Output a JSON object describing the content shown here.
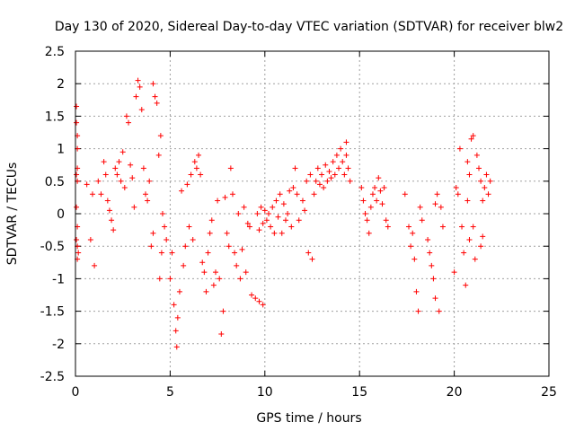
{
  "chart_data": {
    "type": "scatter",
    "title": "Day 130 of 2020, Sidereal Day-to-day VTEC variation (SDTVAR) for receiver blw2",
    "xlabel": "GPS time / hours",
    "ylabel": "SDTVAR / TECUs",
    "xlim": [
      0,
      25
    ],
    "ylim": [
      -2.5,
      2.5
    ],
    "xticks": [
      "0",
      "5",
      "10",
      "15",
      "20",
      "25"
    ],
    "yticks": [
      "2.5",
      "2",
      "1.5",
      "1",
      "0.5",
      "0",
      "-0.5",
      "-1",
      "-1.5",
      "-2",
      "-2.5"
    ],
    "grid": true,
    "marker": "+",
    "series_color": "#ff0000",
    "series": [
      {
        "name": "SDTVAR",
        "points": [
          [
            0.05,
            1.65
          ],
          [
            0.05,
            1.4
          ],
          [
            0.1,
            1.2
          ],
          [
            0.1,
            1.0
          ],
          [
            0.1,
            0.7
          ],
          [
            0.05,
            0.6
          ],
          [
            0.1,
            0.5
          ],
          [
            0.05,
            -0.4
          ],
          [
            0.1,
            -0.5
          ],
          [
            0.15,
            -0.6
          ],
          [
            0.1,
            -0.7
          ],
          [
            0.05,
            0.1
          ],
          [
            0.1,
            -0.2
          ],
          [
            0.6,
            0.45
          ],
          [
            0.8,
            -0.4
          ],
          [
            0.9,
            0.3
          ],
          [
            1.0,
            -0.8
          ],
          [
            1.2,
            0.5
          ],
          [
            1.35,
            0.3
          ],
          [
            1.5,
            0.8
          ],
          [
            1.6,
            0.6
          ],
          [
            1.7,
            0.2
          ],
          [
            1.8,
            0.05
          ],
          [
            1.9,
            -0.1
          ],
          [
            2.0,
            -0.25
          ],
          [
            2.1,
            0.7
          ],
          [
            2.2,
            0.6
          ],
          [
            2.3,
            0.8
          ],
          [
            2.4,
            0.5
          ],
          [
            2.5,
            0.95
          ],
          [
            2.6,
            0.4
          ],
          [
            2.7,
            1.5
          ],
          [
            2.8,
            1.4
          ],
          [
            2.9,
            0.75
          ],
          [
            3.0,
            0.55
          ],
          [
            3.1,
            0.1
          ],
          [
            3.2,
            1.8
          ],
          [
            3.3,
            2.05
          ],
          [
            3.4,
            1.95
          ],
          [
            3.5,
            1.6
          ],
          [
            3.6,
            0.7
          ],
          [
            3.7,
            0.3
          ],
          [
            3.8,
            0.2
          ],
          [
            3.9,
            0.5
          ],
          [
            4.0,
            -0.5
          ],
          [
            4.1,
            -0.3
          ],
          [
            4.1,
            2.0
          ],
          [
            4.2,
            1.8
          ],
          [
            4.3,
            1.7
          ],
          [
            4.4,
            0.9
          ],
          [
            4.45,
            -1.0
          ],
          [
            4.5,
            1.2
          ],
          [
            4.55,
            -0.6
          ],
          [
            4.6,
            0.0
          ],
          [
            4.7,
            -0.2
          ],
          [
            4.8,
            -0.4
          ],
          [
            5.0,
            -1.0
          ],
          [
            5.1,
            -0.6
          ],
          [
            5.2,
            -1.4
          ],
          [
            5.3,
            -1.8
          ],
          [
            5.35,
            -2.05
          ],
          [
            5.4,
            -1.6
          ],
          [
            5.5,
            -1.2
          ],
          [
            5.6,
            0.35
          ],
          [
            5.7,
            -0.8
          ],
          [
            5.8,
            -0.5
          ],
          [
            5.9,
            0.45
          ],
          [
            6.0,
            -0.2
          ],
          [
            6.1,
            0.6
          ],
          [
            6.2,
            -0.4
          ],
          [
            6.3,
            0.8
          ],
          [
            6.4,
            0.7
          ],
          [
            6.5,
            0.9
          ],
          [
            6.6,
            0.6
          ],
          [
            6.7,
            -0.75
          ],
          [
            6.8,
            -0.9
          ],
          [
            6.9,
            -1.2
          ],
          [
            7.0,
            -0.6
          ],
          [
            7.1,
            -0.3
          ],
          [
            7.2,
            -0.1
          ],
          [
            7.3,
            -1.1
          ],
          [
            7.4,
            -0.9
          ],
          [
            7.5,
            0.2
          ],
          [
            7.6,
            -1.0
          ],
          [
            7.7,
            -1.85
          ],
          [
            7.8,
            -1.5
          ],
          [
            7.9,
            0.25
          ],
          [
            8.0,
            -0.3
          ],
          [
            8.1,
            -0.5
          ],
          [
            8.2,
            0.7
          ],
          [
            8.3,
            0.3
          ],
          [
            8.4,
            -0.6
          ],
          [
            8.5,
            -0.8
          ],
          [
            8.6,
            0.0
          ],
          [
            8.7,
            -1.0
          ],
          [
            8.8,
            -0.55
          ],
          [
            8.9,
            0.1
          ],
          [
            9.0,
            -0.9
          ],
          [
            9.1,
            -0.15
          ],
          [
            9.2,
            -0.2
          ],
          [
            9.3,
            -1.25
          ],
          [
            9.5,
            -1.3
          ],
          [
            9.7,
            -1.35
          ],
          [
            9.9,
            -1.4
          ],
          [
            9.6,
            0.0
          ],
          [
            9.7,
            -0.25
          ],
          [
            9.8,
            0.1
          ],
          [
            9.9,
            -0.15
          ],
          [
            10.0,
            0.05
          ],
          [
            10.1,
            -0.1
          ],
          [
            10.2,
            0.0
          ],
          [
            10.3,
            -0.2
          ],
          [
            10.4,
            0.1
          ],
          [
            10.5,
            -0.3
          ],
          [
            10.6,
            0.2
          ],
          [
            10.7,
            -0.05
          ],
          [
            10.8,
            0.3
          ],
          [
            10.9,
            -0.3
          ],
          [
            11.0,
            0.15
          ],
          [
            11.1,
            -0.1
          ],
          [
            11.2,
            0.0
          ],
          [
            11.3,
            0.35
          ],
          [
            11.4,
            -0.2
          ],
          [
            11.5,
            0.4
          ],
          [
            11.6,
            0.7
          ],
          [
            11.7,
            0.3
          ],
          [
            11.8,
            -0.1
          ],
          [
            12.0,
            0.2
          ],
          [
            12.1,
            0.05
          ],
          [
            12.2,
            0.5
          ],
          [
            12.3,
            -0.6
          ],
          [
            12.4,
            0.6
          ],
          [
            12.5,
            -0.7
          ],
          [
            12.6,
            0.3
          ],
          [
            12.7,
            0.5
          ],
          [
            12.8,
            0.7
          ],
          [
            12.9,
            0.45
          ],
          [
            13.0,
            0.6
          ],
          [
            13.1,
            0.4
          ],
          [
            13.2,
            0.75
          ],
          [
            13.3,
            0.5
          ],
          [
            13.4,
            0.65
          ],
          [
            13.5,
            0.55
          ],
          [
            13.6,
            0.8
          ],
          [
            13.7,
            0.6
          ],
          [
            13.8,
            0.9
          ],
          [
            13.9,
            0.7
          ],
          [
            14.0,
            1.0
          ],
          [
            14.1,
            0.8
          ],
          [
            14.2,
            0.6
          ],
          [
            14.3,
            0.9
          ],
          [
            14.4,
            0.7
          ],
          [
            14.5,
            0.5
          ],
          [
            14.3,
            1.1
          ],
          [
            15.1,
            0.4
          ],
          [
            15.2,
            0.2
          ],
          [
            15.3,
            0.0
          ],
          [
            15.4,
            -0.1
          ],
          [
            15.5,
            -0.3
          ],
          [
            15.6,
            0.1
          ],
          [
            15.7,
            0.3
          ],
          [
            15.8,
            0.4
          ],
          [
            15.9,
            0.2
          ],
          [
            16.0,
            0.55
          ],
          [
            16.1,
            0.35
          ],
          [
            16.2,
            0.15
          ],
          [
            16.3,
            0.4
          ],
          [
            16.4,
            -0.1
          ],
          [
            16.5,
            -0.2
          ],
          [
            17.4,
            0.3
          ],
          [
            17.6,
            -0.2
          ],
          [
            17.7,
            -0.5
          ],
          [
            17.8,
            -0.3
          ],
          [
            17.9,
            -0.7
          ],
          [
            18.0,
            -1.2
          ],
          [
            18.1,
            -1.5
          ],
          [
            18.2,
            0.1
          ],
          [
            18.3,
            -0.1
          ],
          [
            18.6,
            -0.4
          ],
          [
            18.7,
            -0.6
          ],
          [
            18.8,
            -0.8
          ],
          [
            18.9,
            -1.0
          ],
          [
            19.0,
            -1.3
          ],
          [
            19.0,
            0.15
          ],
          [
            19.1,
            0.3
          ],
          [
            19.2,
            -1.5
          ],
          [
            19.3,
            0.1
          ],
          [
            19.4,
            -0.2
          ],
          [
            20.0,
            -0.9
          ],
          [
            20.1,
            0.4
          ],
          [
            20.2,
            0.3
          ],
          [
            20.3,
            1.0
          ],
          [
            20.4,
            -0.2
          ],
          [
            20.5,
            -0.6
          ],
          [
            20.6,
            -1.1
          ],
          [
            20.7,
            0.8
          ],
          [
            20.8,
            0.6
          ],
          [
            20.9,
            1.15
          ],
          [
            21.0,
            1.2
          ],
          [
            21.1,
            -0.7
          ],
          [
            21.2,
            0.9
          ],
          [
            21.3,
            0.7
          ],
          [
            21.4,
            0.5
          ],
          [
            21.5,
            0.2
          ],
          [
            21.6,
            0.4
          ],
          [
            21.7,
            0.6
          ],
          [
            21.8,
            0.3
          ],
          [
            21.9,
            0.5
          ],
          [
            21.4,
            -0.5
          ],
          [
            21.5,
            -0.35
          ],
          [
            21.0,
            -0.2
          ],
          [
            20.8,
            -0.4
          ],
          [
            20.7,
            0.2
          ]
        ]
      }
    ]
  }
}
